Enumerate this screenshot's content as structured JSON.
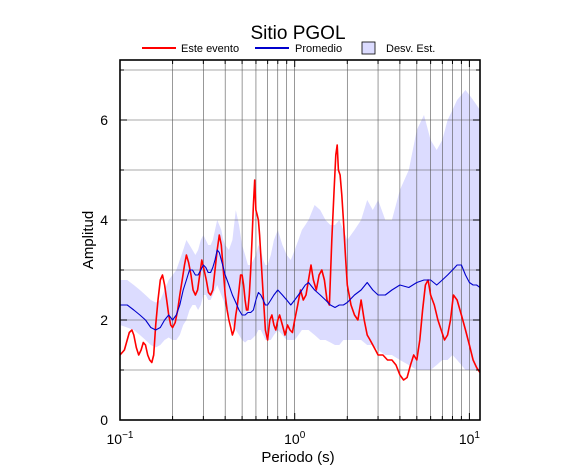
{
  "chart_data": {
    "type": "line",
    "title": "Sitio PGOL",
    "xlabel": "Periodo (s)",
    "ylabel": "Amplitud",
    "x_scale": "log",
    "xlim": [
      0.1,
      11.5
    ],
    "ylim": [
      0,
      7.2
    ],
    "grid": true,
    "legend_position": "top",
    "x_ticks": [
      {
        "value": 0.1,
        "base": "10",
        "exp": "−1"
      },
      {
        "value": 1,
        "base": "10",
        "exp": "0"
      },
      {
        "value": 10,
        "base": "10",
        "exp": "1"
      }
    ],
    "y_ticks": [
      {
        "value": 0,
        "label": "0"
      },
      {
        "value": 2,
        "label": "2"
      },
      {
        "value": 4,
        "label": "4"
      },
      {
        "value": 6,
        "label": "6"
      }
    ],
    "legend": [
      {
        "label": "Este evento",
        "kind": "line",
        "color": "#ff0000"
      },
      {
        "label": "Promedio",
        "kind": "line",
        "color": "#0000cc"
      },
      {
        "label": "Desv. Est.",
        "kind": "box",
        "color": "#dcdcff"
      }
    ],
    "series": [
      {
        "name": "Este evento",
        "color": "#ff0000",
        "x": [
          0.1,
          0.103,
          0.106,
          0.11,
          0.113,
          0.117,
          0.12,
          0.124,
          0.128,
          0.132,
          0.136,
          0.14,
          0.144,
          0.148,
          0.152,
          0.156,
          0.16,
          0.165,
          0.17,
          0.175,
          0.18,
          0.185,
          0.19,
          0.195,
          0.2,
          0.207,
          0.214,
          0.22,
          0.227,
          0.234,
          0.24,
          0.247,
          0.255,
          0.262,
          0.27,
          0.278,
          0.286,
          0.294,
          0.303,
          0.312,
          0.321,
          0.33,
          0.34,
          0.35,
          0.36,
          0.37,
          0.38,
          0.39,
          0.4,
          0.41,
          0.42,
          0.43,
          0.44,
          0.45,
          0.46,
          0.47,
          0.48,
          0.49,
          0.5,
          0.51,
          0.52,
          0.53,
          0.54,
          0.55,
          0.56,
          0.57,
          0.58,
          0.59,
          0.6,
          0.61,
          0.62,
          0.63,
          0.64,
          0.65,
          0.66,
          0.68,
          0.7,
          0.72,
          0.74,
          0.76,
          0.78,
          0.8,
          0.82,
          0.85,
          0.88,
          0.91,
          0.94,
          0.97,
          1.0,
          1.04,
          1.08,
          1.12,
          1.16,
          1.2,
          1.24,
          1.28,
          1.33,
          1.38,
          1.43,
          1.48,
          1.53,
          1.58,
          1.63,
          1.68,
          1.72,
          1.75,
          1.78,
          1.82,
          1.86,
          1.9,
          1.95,
          2.0,
          2.1,
          2.2,
          2.3,
          2.4,
          2.5,
          2.6,
          2.7,
          2.8,
          2.9,
          3.0,
          3.2,
          3.4,
          3.6,
          3.8,
          4.0,
          4.2,
          4.4,
          4.6,
          4.8,
          5.0,
          5.2,
          5.4,
          5.6,
          5.8,
          6.0,
          6.3,
          6.6,
          6.9,
          7.2,
          7.5,
          7.8,
          8.1,
          8.5,
          9.0,
          9.5,
          10.0,
          10.5,
          11.0,
          11.5
        ],
        "y": [
          1.3,
          1.35,
          1.4,
          1.6,
          1.75,
          1.8,
          1.7,
          1.45,
          1.3,
          1.4,
          1.55,
          1.5,
          1.3,
          1.2,
          1.15,
          1.3,
          1.9,
          2.4,
          2.8,
          2.9,
          2.7,
          2.4,
          2.1,
          1.9,
          1.85,
          1.95,
          2.2,
          2.5,
          2.8,
          3.1,
          3.3,
          3.15,
          2.9,
          2.6,
          2.5,
          2.6,
          2.9,
          3.2,
          3.0,
          2.8,
          2.55,
          2.5,
          2.6,
          3.0,
          3.4,
          3.7,
          3.5,
          3.0,
          2.5,
          2.2,
          2.0,
          1.85,
          1.7,
          1.8,
          2.1,
          2.3,
          2.6,
          2.9,
          2.9,
          2.7,
          2.4,
          2.2,
          2.2,
          2.5,
          3.0,
          3.6,
          4.3,
          4.8,
          4.2,
          4.1,
          4.0,
          3.7,
          3.3,
          2.9,
          2.5,
          1.8,
          1.6,
          2.0,
          2.1,
          1.9,
          1.8,
          2.0,
          2.1,
          1.9,
          1.7,
          1.9,
          1.8,
          1.75,
          2.0,
          2.3,
          2.6,
          2.4,
          2.5,
          2.8,
          3.1,
          2.8,
          2.6,
          2.9,
          3.0,
          2.8,
          2.4,
          2.3,
          3.6,
          4.6,
          5.3,
          5.5,
          5.0,
          4.9,
          4.5,
          4.0,
          3.3,
          2.7,
          2.3,
          2.1,
          2.0,
          2.4,
          2.0,
          1.7,
          1.6,
          1.5,
          1.4,
          1.3,
          1.3,
          1.2,
          1.2,
          1.1,
          0.9,
          0.8,
          0.85,
          1.1,
          1.3,
          1.2,
          1.6,
          2.2,
          2.7,
          2.8,
          2.5,
          2.3,
          2.0,
          1.8,
          1.6,
          1.7,
          2.0,
          2.5,
          2.4,
          2.1,
          1.8,
          1.5,
          1.2,
          1.05,
          0.95
        ]
      },
      {
        "name": "Promedio",
        "color": "#0000cc",
        "x": [
          0.1,
          0.11,
          0.12,
          0.13,
          0.14,
          0.15,
          0.16,
          0.17,
          0.18,
          0.19,
          0.2,
          0.21,
          0.22,
          0.23,
          0.24,
          0.25,
          0.26,
          0.27,
          0.28,
          0.29,
          0.3,
          0.31,
          0.32,
          0.33,
          0.34,
          0.35,
          0.36,
          0.37,
          0.38,
          0.39,
          0.4,
          0.42,
          0.44,
          0.46,
          0.48,
          0.5,
          0.52,
          0.54,
          0.56,
          0.58,
          0.6,
          0.62,
          0.64,
          0.66,
          0.68,
          0.7,
          0.73,
          0.76,
          0.8,
          0.85,
          0.9,
          0.95,
          1.0,
          1.05,
          1.1,
          1.15,
          1.2,
          1.3,
          1.4,
          1.5,
          1.6,
          1.7,
          1.8,
          1.9,
          2.0,
          2.2,
          2.4,
          2.6,
          2.8,
          3.0,
          3.3,
          3.6,
          4.0,
          4.5,
          5.0,
          5.5,
          6.0,
          6.5,
          7.0,
          7.5,
          8.0,
          8.5,
          9.0,
          9.5,
          10.0,
          10.5,
          11.0,
          11.5
        ],
        "y": [
          2.3,
          2.3,
          2.2,
          2.1,
          2.0,
          1.85,
          1.8,
          1.85,
          2.0,
          2.1,
          2.0,
          2.1,
          2.3,
          2.6,
          2.8,
          3.0,
          3.0,
          2.9,
          2.9,
          3.0,
          3.1,
          3.05,
          2.95,
          2.95,
          3.05,
          3.2,
          3.4,
          3.35,
          3.2,
          3.05,
          2.9,
          2.7,
          2.5,
          2.35,
          2.2,
          2.1,
          2.1,
          2.15,
          2.15,
          2.2,
          2.4,
          2.55,
          2.5,
          2.4,
          2.3,
          2.3,
          2.4,
          2.5,
          2.6,
          2.5,
          2.4,
          2.3,
          2.4,
          2.5,
          2.6,
          2.7,
          2.75,
          2.6,
          2.5,
          2.4,
          2.3,
          2.25,
          2.3,
          2.3,
          2.35,
          2.5,
          2.6,
          2.75,
          2.6,
          2.5,
          2.5,
          2.6,
          2.7,
          2.65,
          2.75,
          2.8,
          2.8,
          2.7,
          2.8,
          2.9,
          3.0,
          3.1,
          3.1,
          2.9,
          2.75,
          2.7,
          2.7,
          2.65
        ]
      },
      {
        "name": "Desv. Est.",
        "color": "#dcdcff",
        "x": [
          0.1,
          0.11,
          0.12,
          0.13,
          0.14,
          0.15,
          0.16,
          0.17,
          0.18,
          0.19,
          0.2,
          0.21,
          0.22,
          0.23,
          0.24,
          0.25,
          0.26,
          0.27,
          0.28,
          0.29,
          0.3,
          0.31,
          0.32,
          0.33,
          0.34,
          0.35,
          0.36,
          0.37,
          0.38,
          0.39,
          0.4,
          0.42,
          0.44,
          0.46,
          0.48,
          0.5,
          0.52,
          0.54,
          0.56,
          0.58,
          0.6,
          0.62,
          0.64,
          0.66,
          0.68,
          0.7,
          0.73,
          0.76,
          0.8,
          0.85,
          0.9,
          0.95,
          1.0,
          1.05,
          1.1,
          1.15,
          1.2,
          1.3,
          1.4,
          1.5,
          1.6,
          1.7,
          1.8,
          1.9,
          2.0,
          2.2,
          2.4,
          2.6,
          2.8,
          3.0,
          3.3,
          3.6,
          4.0,
          4.5,
          5.0,
          5.5,
          6.0,
          6.5,
          7.0,
          7.5,
          8.0,
          8.5,
          9.0,
          9.5,
          10.0,
          10.5,
          11.0,
          11.5
        ],
        "upper": [
          2.8,
          2.8,
          2.7,
          2.6,
          2.5,
          2.4,
          2.35,
          2.4,
          2.6,
          2.8,
          2.9,
          3.0,
          3.2,
          3.4,
          3.6,
          3.5,
          3.4,
          3.3,
          3.4,
          3.6,
          3.7,
          3.6,
          3.5,
          3.5,
          3.6,
          3.8,
          4.0,
          3.9,
          3.8,
          3.6,
          3.5,
          3.4,
          3.6,
          4.2,
          3.9,
          3.5,
          3.3,
          3.1,
          3.1,
          3.2,
          3.3,
          3.5,
          3.4,
          3.2,
          3.1,
          3.1,
          3.3,
          3.6,
          3.8,
          3.5,
          3.3,
          3.2,
          3.4,
          3.6,
          3.8,
          3.9,
          4.0,
          4.3,
          4.2,
          4.0,
          3.9,
          3.9,
          4.0,
          3.8,
          3.6,
          3.8,
          4.0,
          4.4,
          4.2,
          4.4,
          4.0,
          4.0,
          4.6,
          5.0,
          5.8,
          6.1,
          5.6,
          5.4,
          5.6,
          6.0,
          6.2,
          6.4,
          6.5,
          6.6,
          6.5,
          6.4,
          6.3,
          6.2
        ],
        "lower": [
          1.9,
          1.85,
          1.8,
          1.7,
          1.6,
          1.5,
          1.45,
          1.5,
          1.6,
          1.65,
          1.6,
          1.6,
          1.7,
          1.9,
          2.0,
          2.2,
          2.3,
          2.3,
          2.2,
          2.3,
          2.5,
          2.5,
          2.4,
          2.4,
          2.5,
          2.6,
          2.7,
          2.6,
          2.5,
          2.4,
          2.3,
          2.1,
          1.9,
          1.8,
          1.7,
          1.6,
          1.55,
          1.6,
          1.6,
          1.65,
          1.7,
          1.8,
          1.8,
          1.7,
          1.6,
          1.6,
          1.6,
          1.7,
          1.8,
          1.7,
          1.6,
          1.6,
          1.6,
          1.7,
          1.8,
          1.8,
          1.8,
          1.7,
          1.6,
          1.6,
          1.55,
          1.5,
          1.5,
          1.6,
          1.6,
          1.6,
          1.6,
          1.5,
          1.5,
          1.4,
          1.3,
          1.3,
          1.2,
          1.1,
          1.0,
          1.0,
          1.0,
          1.1,
          1.2,
          1.2,
          1.3,
          1.2,
          1.1,
          1.0,
          1.0,
          1.0,
          1.0,
          1.0
        ]
      }
    ]
  }
}
